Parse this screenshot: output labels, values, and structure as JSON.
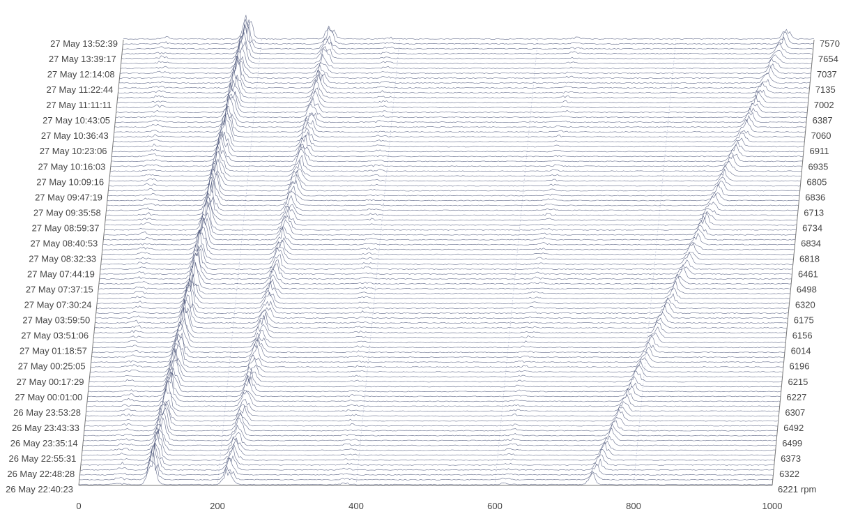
{
  "chart_data": {
    "type": "waterfall",
    "x_ticks": [
      0,
      200,
      400,
      600,
      800,
      1000
    ],
    "xlim": [
      0,
      1000
    ],
    "right_unit": "rpm",
    "grid": true,
    "line_color": "#4a5478",
    "row_labels_left": [
      "27 May 13:52:39",
      "27 May 13:39:17",
      "27 May 12:14:08",
      "27 May 11:22:44",
      "27 May 11:11:11",
      "27 May 10:43:05",
      "27 May 10:36:43",
      "27 May 10:23:06",
      "27 May 10:16:03",
      "27 May 10:09:16",
      "27 May 09:47:19",
      "27 May 09:35:58",
      "27 May 08:59:37",
      "27 May 08:40:53",
      "27 May 08:32:33",
      "27 May 07:44:19",
      "27 May 07:37:15",
      "27 May 07:30:24",
      "27 May 03:59:50",
      "27 May 03:51:06",
      "27 May 01:18:57",
      "27 May 00:25:05",
      "27 May 00:17:29",
      "27 May 00:01:00",
      "26 May 23:53:28",
      "26 May 23:43:33",
      "26 May 23:35:14",
      "26 May 22:55:31",
      "26 May 22:48:28",
      "26 May 22:40:23"
    ],
    "row_labels_right": [
      "7570",
      "7654",
      "7037",
      "7135",
      "7002",
      "6387",
      "7060",
      "6911",
      "6935",
      "6805",
      "6836",
      "6713",
      "6734",
      "6834",
      "6818",
      "6461",
      "6498",
      "6320",
      "6175",
      "6156",
      "6014",
      "6196",
      "6215",
      "6227",
      "6307",
      "6492",
      "6499",
      "6373",
      "6322",
      "6221"
    ],
    "spectral_ridges": [
      {
        "name": "",
        "x_bottom": 105,
        "x_top": 180
      },
      {
        "name": "",
        "x_bottom": 215,
        "x_top": 300
      },
      {
        "name": "",
        "x_bottom": 740,
        "x_top": 960
      }
    ]
  }
}
